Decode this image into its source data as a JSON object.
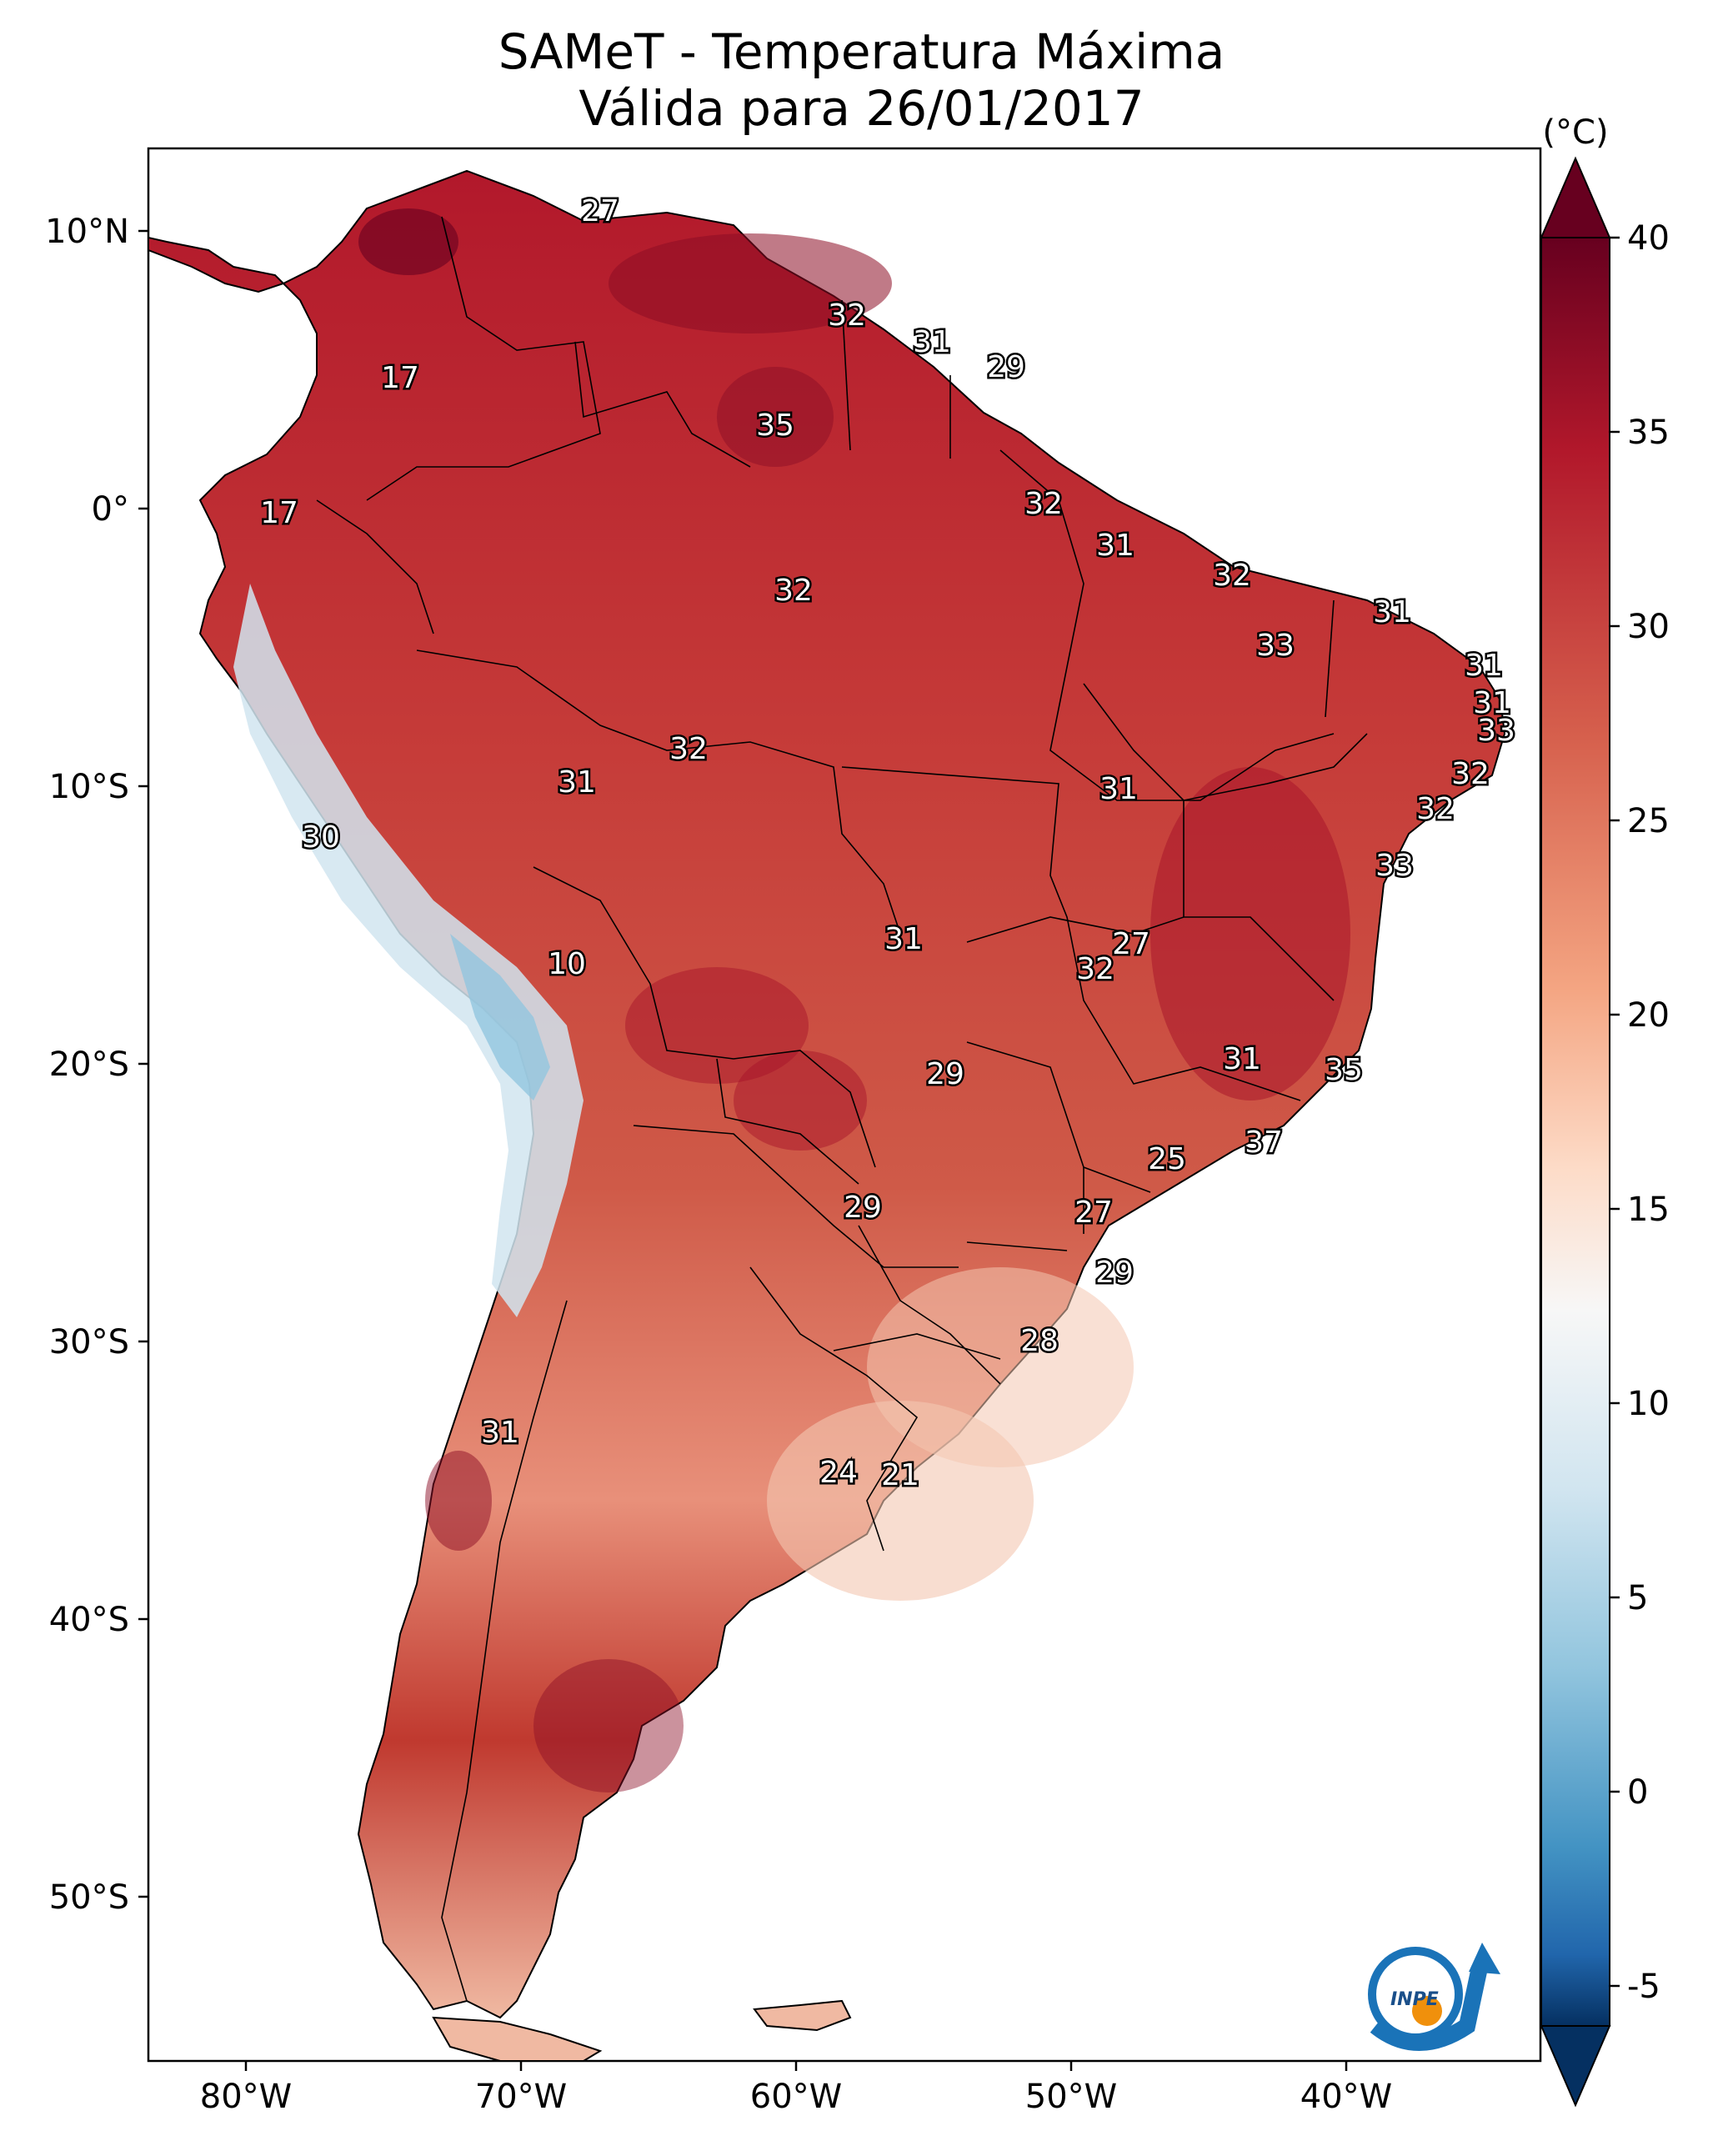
{
  "title": {
    "line1": "SAMeT - Temperatura Máxima",
    "line2": "Válida para 26/01/2017"
  },
  "colorbar": {
    "unit": "(°C)",
    "ticks": [
      "40",
      "35",
      "30",
      "25",
      "20",
      "15",
      "10",
      "5",
      "0",
      "-5"
    ],
    "colors": {
      "hot": "#67001f",
      "warm": "#d6604d",
      "mild": "#f4a582",
      "neutral": "#f7f7f7",
      "cool": "#92c5de",
      "cold": "#053061"
    }
  },
  "axes": {
    "lat_labels": [
      "10°N",
      "0°",
      "10°S",
      "20°S",
      "30°S",
      "40°S",
      "50°S"
    ],
    "lon_labels": [
      "80°W",
      "70°W",
      "60°W",
      "50°W",
      "40°W"
    ]
  },
  "station_values": {
    "colombia_north": "27",
    "colombia_andes": "17",
    "ecuador": "17",
    "peru_coast": "30",
    "guyana": "32",
    "suriname": "31",
    "french_guiana": "29",
    "roraima": "35",
    "amazonas": "32",
    "amapa": "32",
    "para_east": "31",
    "maranhao": "32",
    "ceara": "31",
    "piaui": "33",
    "rn": "31",
    "pb": "31",
    "pe": "33",
    "acre_border": "32",
    "acre": "31",
    "tocantins": "31",
    "alagoas": "32",
    "sergipe": "32",
    "bahia": "33",
    "mato_grosso": "31",
    "altiplano": "10",
    "goias_a": "27",
    "goias_b": "32",
    "ms": "29",
    "minas": "31",
    "espirito_santo": "35",
    "rio": "37",
    "sao_paulo": "25",
    "paraguay": "29",
    "parana": "27",
    "santa_catarina": "29",
    "rio_grande_sul": "28",
    "chile_central": "31",
    "uruguay_w": "24",
    "uruguay_e": "21"
  },
  "logo": {
    "text": "INPE"
  }
}
